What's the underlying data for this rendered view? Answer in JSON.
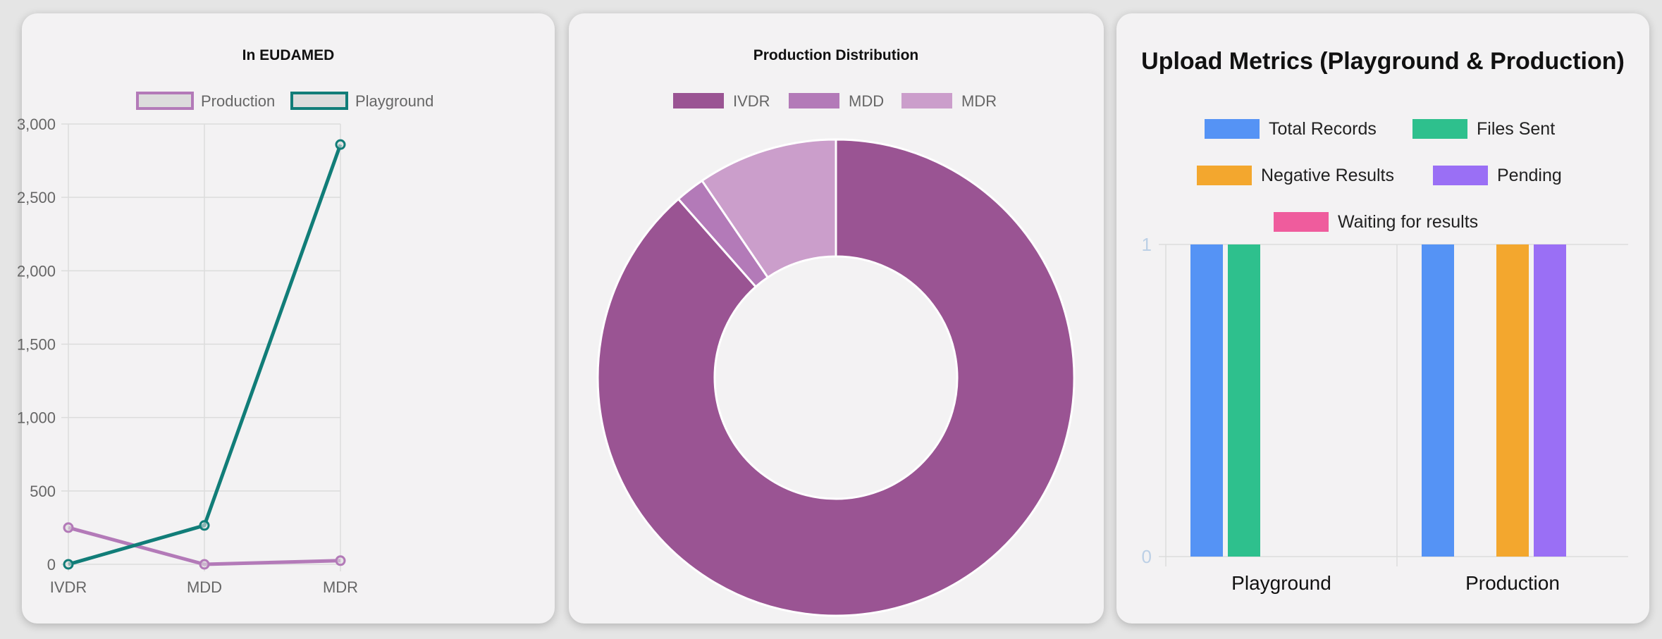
{
  "colors": {
    "production_line": "#b37ab8",
    "playground_line": "#117d78",
    "ivdr": "#9a5493",
    "mdd": "#b37ab8",
    "mdr": "#cb9ecb",
    "total_records": "#5593f5",
    "files_sent": "#2ec08d",
    "negative_results": "#f3a72e",
    "pending": "#9a6ff5",
    "waiting": "#ef5c9d"
  },
  "chart_data": [
    {
      "type": "line",
      "title": "In EUDAMED",
      "categories": [
        "IVDR",
        "MDD",
        "MDR"
      ],
      "series": [
        {
          "name": "Production",
          "values": [
            250,
            0,
            25
          ]
        },
        {
          "name": "Playground",
          "values": [
            0,
            265,
            2860
          ]
        }
      ],
      "ylim": [
        0,
        3000
      ],
      "yticks": [
        "3,000",
        "2,500",
        "2,000",
        "1,500",
        "1,000",
        "500",
        "0"
      ],
      "ytick_values": [
        3000,
        2500,
        2000,
        1500,
        1000,
        500,
        0
      ],
      "grid": true,
      "legend": "top"
    },
    {
      "type": "pie",
      "title": "Production Distribution",
      "labels": [
        "IVDR",
        "MDD",
        "MDR"
      ],
      "values": [
        88.5,
        2,
        9.5
      ],
      "legend": "top"
    },
    {
      "type": "bar",
      "title": "Upload Metrics (Playground & Production)",
      "categories": [
        "Playground",
        "Production"
      ],
      "series": [
        {
          "name": "Total Records",
          "values": [
            1,
            1
          ]
        },
        {
          "name": "Files Sent",
          "values": [
            1,
            0
          ]
        },
        {
          "name": "Negative Results",
          "values": [
            0,
            1
          ]
        },
        {
          "name": "Pending",
          "values": [
            0,
            1
          ]
        },
        {
          "name": "Waiting for results",
          "values": [
            0,
            0
          ]
        }
      ],
      "ylim": [
        0,
        1
      ],
      "yticks": [
        "1",
        "0"
      ],
      "grid": true,
      "legend": "top"
    }
  ]
}
